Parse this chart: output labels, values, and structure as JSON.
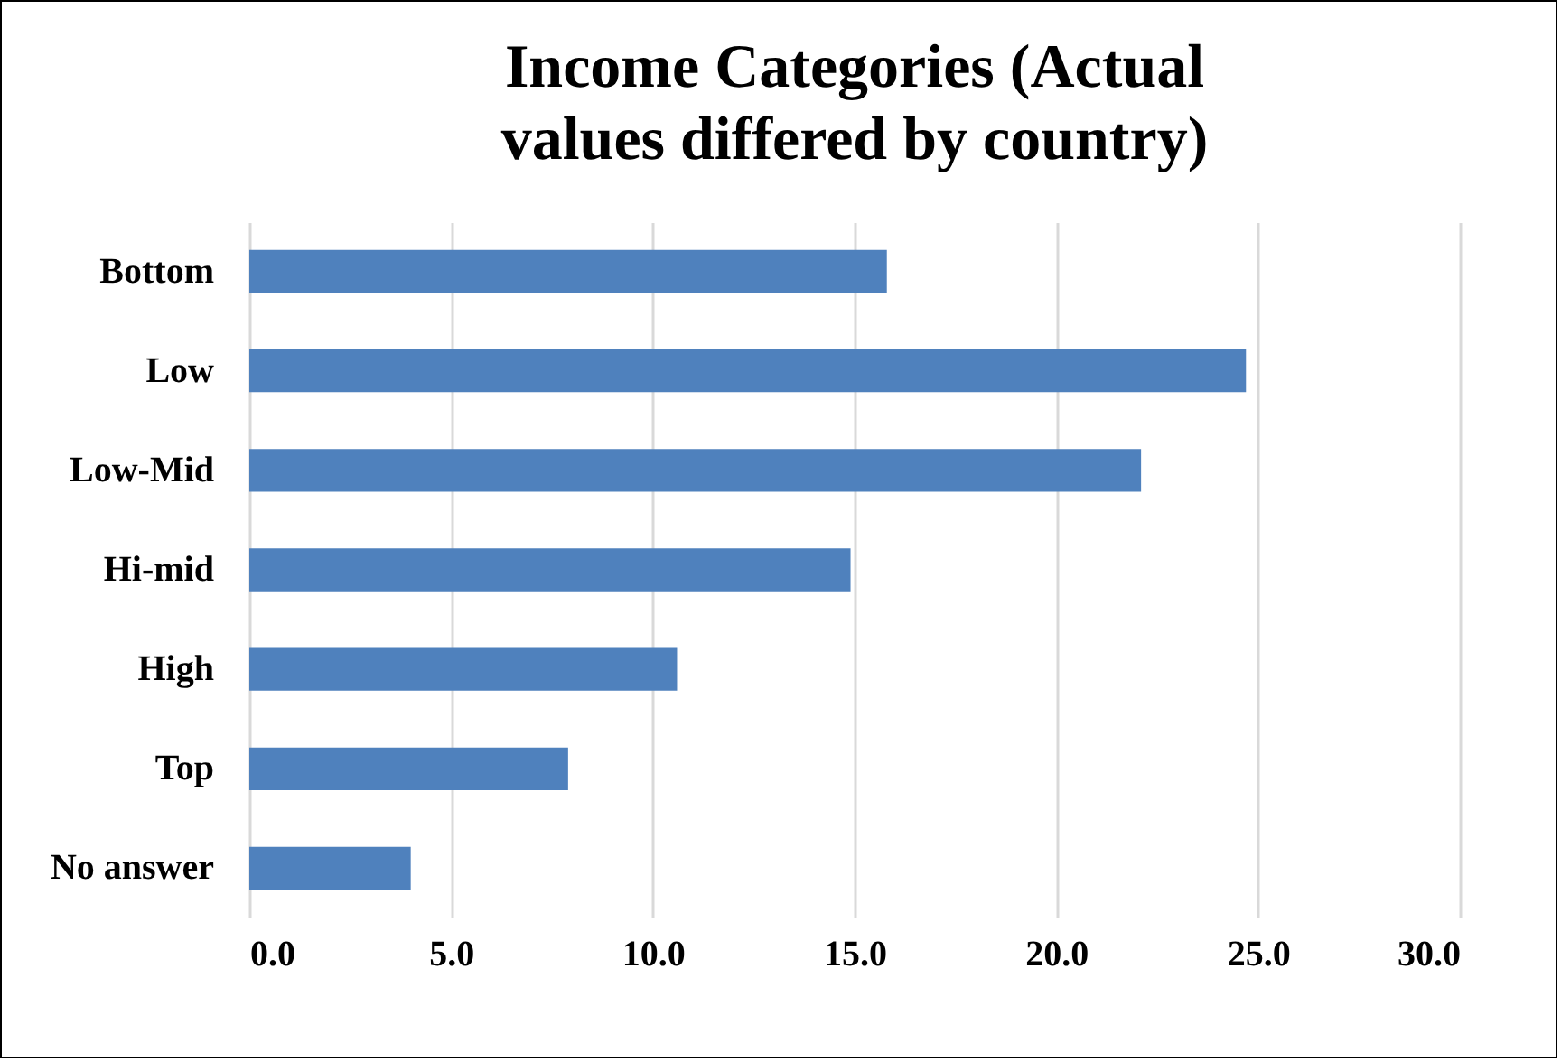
{
  "chart_data": {
    "type": "bar",
    "orientation": "horizontal",
    "title": "Income Categories (Actual values differed by country)",
    "categories": [
      "Bottom",
      "Low",
      "Low-Mid",
      "Hi-mid",
      "High",
      "Top",
      "No answer"
    ],
    "values": [
      15.8,
      24.7,
      22.1,
      14.9,
      10.6,
      7.9,
      4.0
    ],
    "color": "#4f81bd",
    "xlim": [
      0,
      30
    ],
    "xticks": [
      {
        "value": 0,
        "label": "0.0"
      },
      {
        "value": 5,
        "label": "5.0"
      },
      {
        "value": 10,
        "label": "10.0"
      },
      {
        "value": 15,
        "label": "15.0"
      },
      {
        "value": 20,
        "label": "20.0"
      },
      {
        "value": 25,
        "label": "25.0"
      },
      {
        "value": 30,
        "label": "30.0"
      }
    ],
    "grid": "x"
  }
}
